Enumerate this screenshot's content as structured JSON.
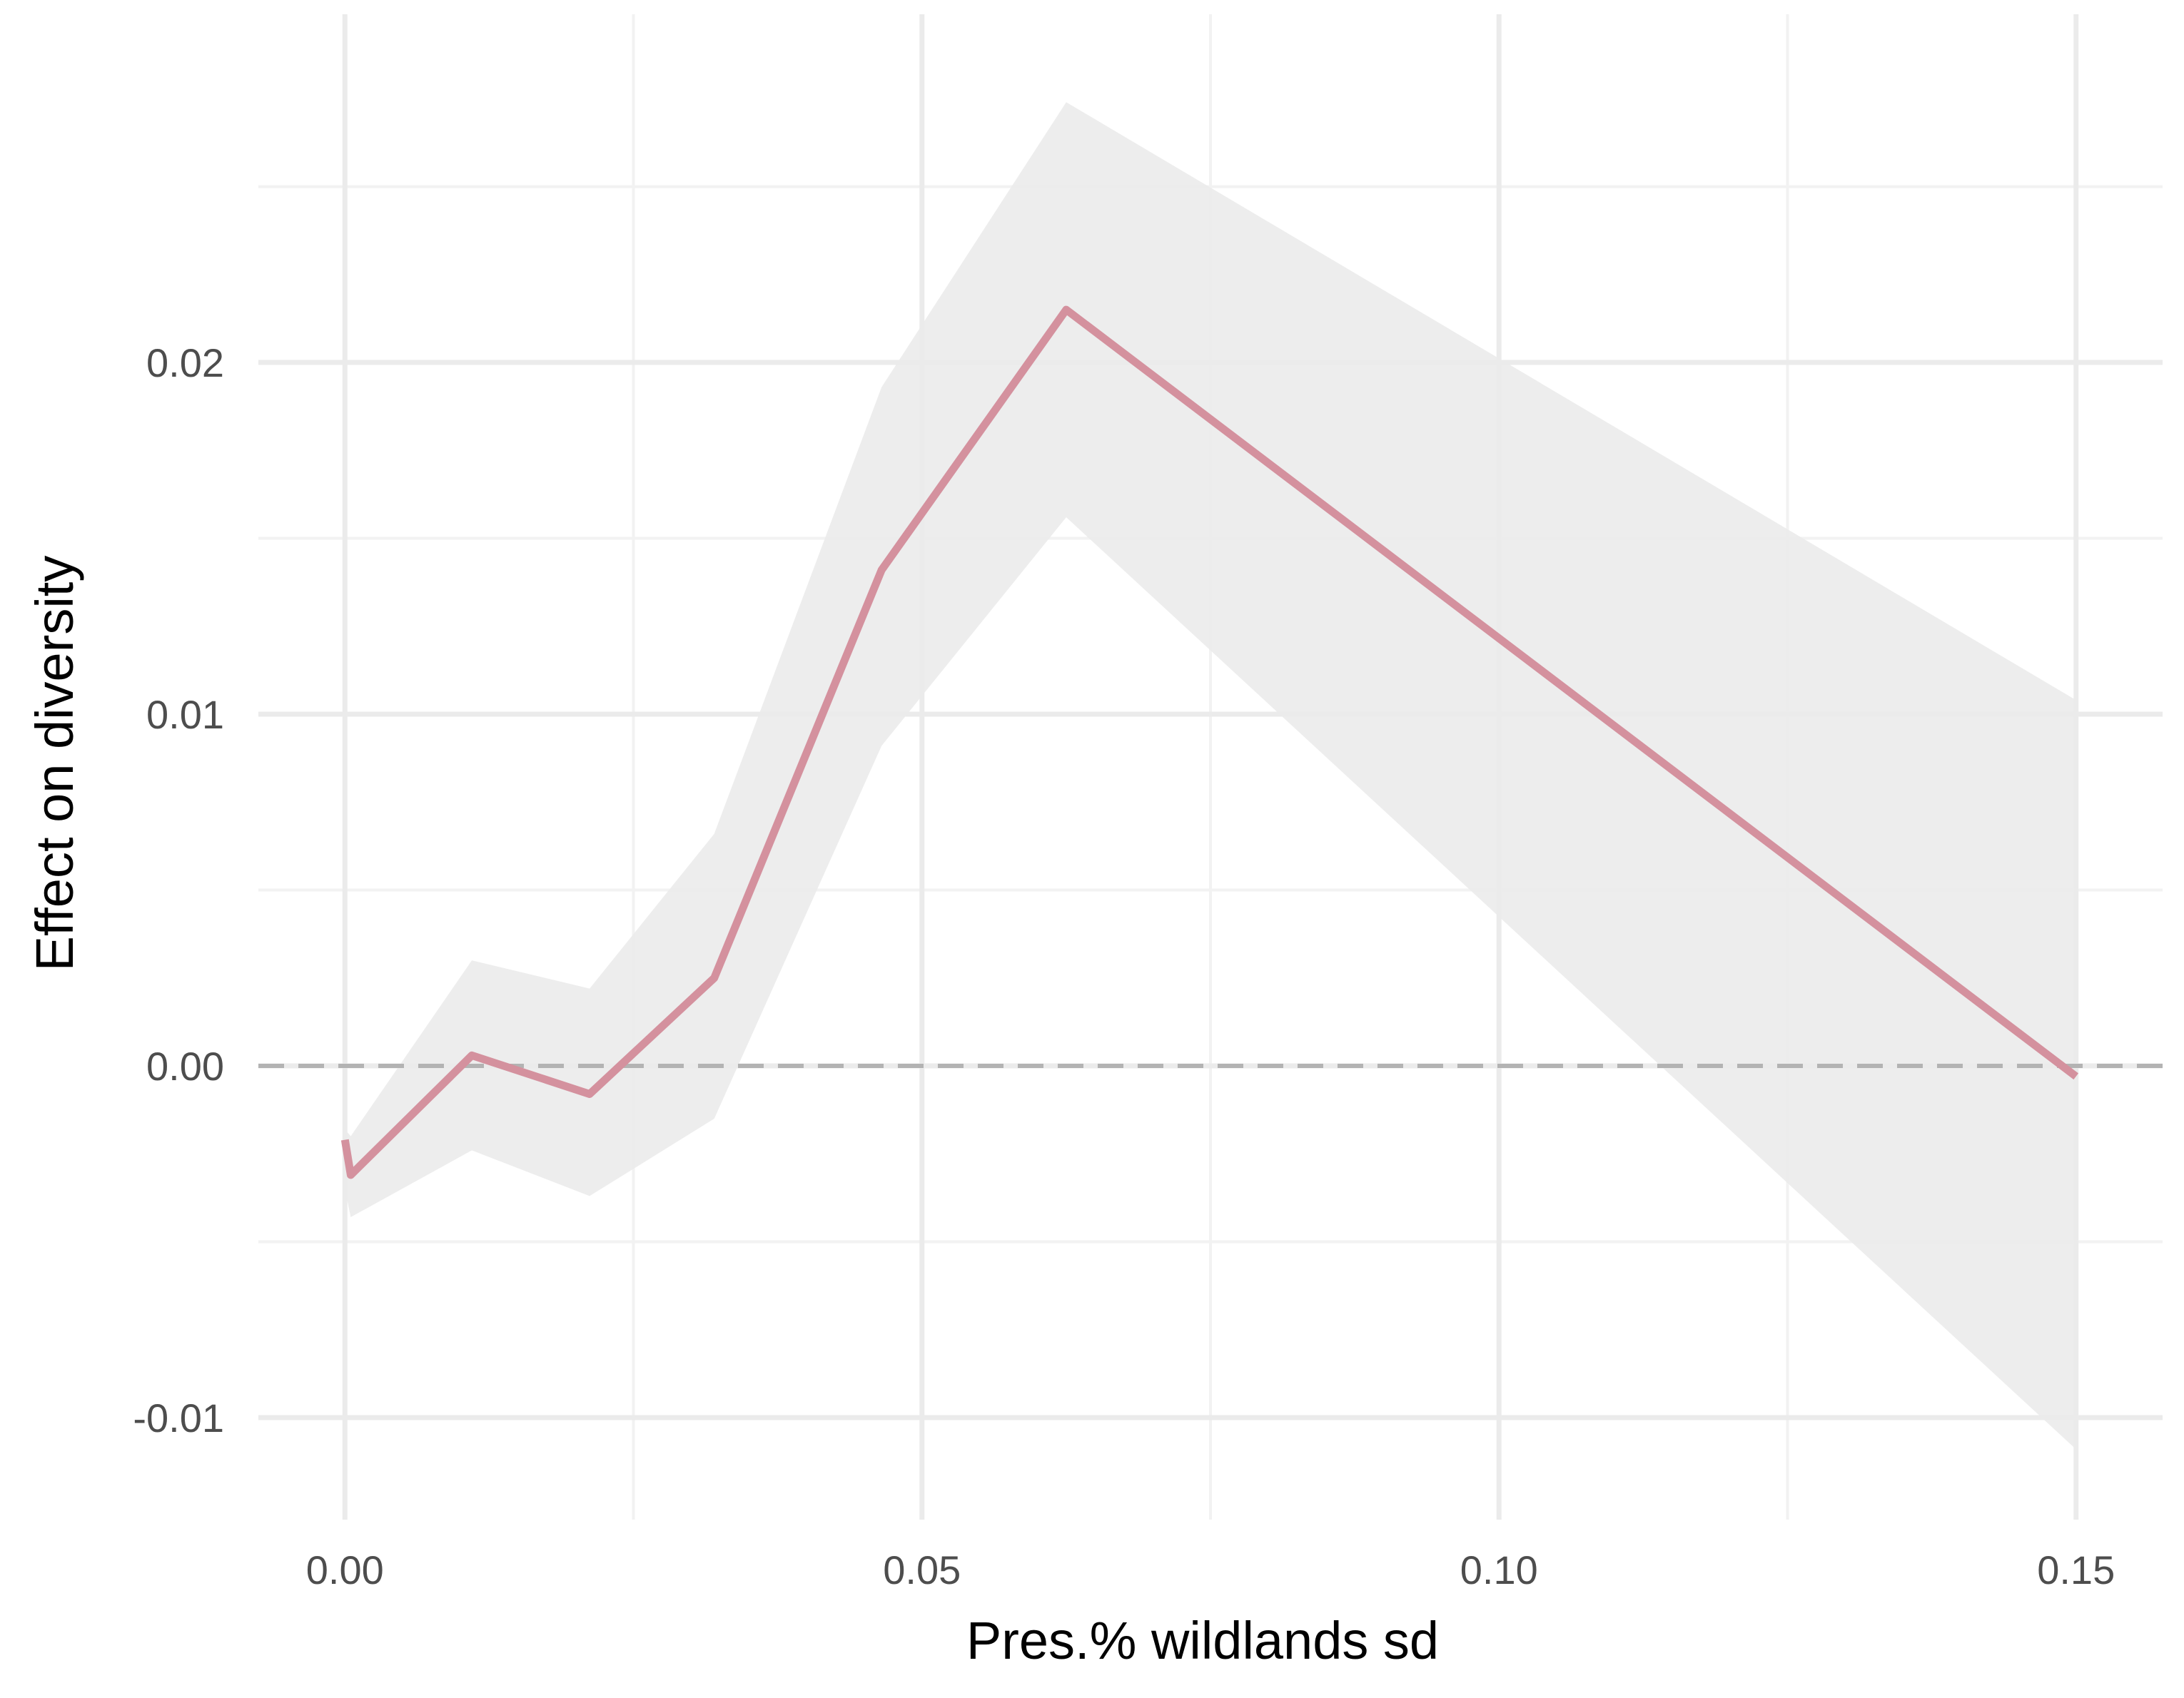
{
  "chart_data": {
    "type": "line",
    "title": "",
    "xlabel": "Pres.% wildlands sd",
    "ylabel": "Effect on diversity",
    "xlim": [
      -0.0075,
      0.1575
    ],
    "ylim": [
      -0.0129,
      0.0299
    ],
    "x_ticks": [
      0.0,
      0.05,
      0.1,
      0.15
    ],
    "x_tick_labels": [
      "0.00",
      "0.05",
      "0.10",
      "0.15"
    ],
    "x_minor_ticks": [
      0.025,
      0.075,
      0.125
    ],
    "y_ticks": [
      -0.01,
      0.0,
      0.01,
      0.02
    ],
    "y_tick_labels": [
      "-0.01",
      "0.00",
      "0.01",
      "0.02"
    ],
    "y_minor_ticks": [
      -0.005,
      0.005,
      0.015,
      0.025
    ],
    "grid": true,
    "reference_line": {
      "y": 0,
      "style": "dashed"
    },
    "series": [
      {
        "x": [
          0.0,
          0.0005,
          0.011,
          0.0212,
          0.032,
          0.0465,
          0.0625,
          0.15
        ],
        "y": [
          -0.0021,
          -0.0031,
          0.0003,
          -0.0008,
          0.0025,
          0.0141,
          0.0215,
          -0.0003
        ],
        "ci_lower": [
          -0.0035,
          -0.0043,
          -0.0024,
          -0.0037,
          -0.0015,
          0.0091,
          0.0156,
          -0.0109
        ],
        "ci_upper": [
          -0.0018,
          -0.002,
          0.003,
          0.0022,
          0.0066,
          0.0193,
          0.0274,
          0.0104
        ]
      }
    ],
    "colors": {
      "line": "#d4919e",
      "ribbon": "#ebebeb",
      "grid_major": "#ebebeb",
      "grid_minor": "#f2f2f2",
      "reference_line": "#b3b3b3"
    }
  }
}
